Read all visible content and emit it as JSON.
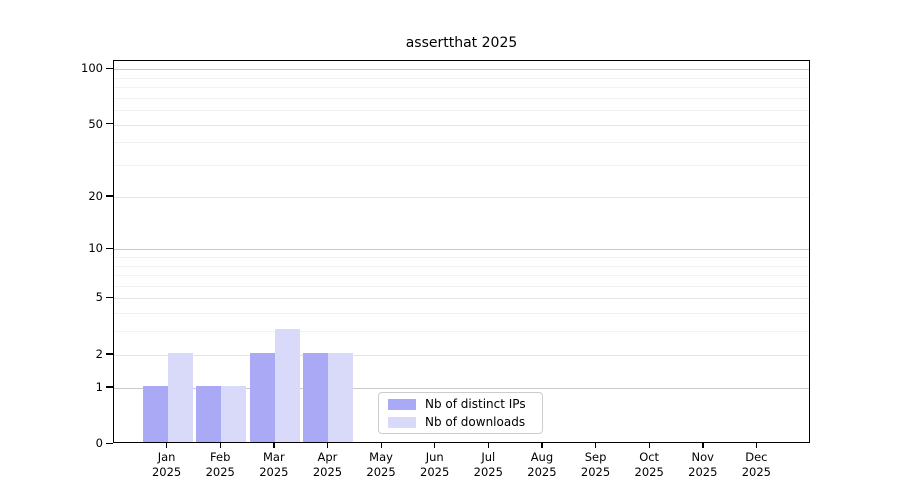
{
  "chart_data": {
    "type": "bar",
    "title": "assertthat 2025",
    "categories": [
      "Jan",
      "Feb",
      "Mar",
      "Apr",
      "May",
      "Jun",
      "Jul",
      "Aug",
      "Sep",
      "Oct",
      "Nov",
      "Dec"
    ],
    "x_tick_year": "2025",
    "series": [
      {
        "name": "Nb of distinct IPs",
        "color": "#a9a9f6",
        "values": [
          1,
          1,
          2,
          2,
          0,
          0,
          0,
          0,
          0,
          0,
          0,
          0
        ]
      },
      {
        "name": "Nb of downloads",
        "color": "#d9d9f9",
        "values": [
          2,
          1,
          3,
          2,
          0,
          0,
          0,
          0,
          0,
          0,
          0,
          0
        ]
      }
    ],
    "y_scale": "log10(1+x)",
    "y_ticks": [
      0,
      1,
      2,
      5,
      10,
      20,
      50,
      100
    ],
    "y_minor_ticks": [
      3,
      4,
      6,
      7,
      8,
      9,
      30,
      40,
      60,
      70,
      80,
      90
    ],
    "y_strong_grid_ticks": [
      1,
      10,
      100
    ],
    "ylim": [
      0,
      111
    ],
    "grid": "on",
    "legend_position": "lower-center-inside"
  },
  "colors": {
    "distinct_ips": "#a9a9f6",
    "downloads": "#d9d9f9",
    "grid_strong": "#c9c9c9",
    "grid_labeled": "#e4e4e4",
    "grid_minor": "#f2f2f2",
    "axis": "#000000",
    "legend_border": "#cccccc",
    "background": "#ffffff"
  }
}
